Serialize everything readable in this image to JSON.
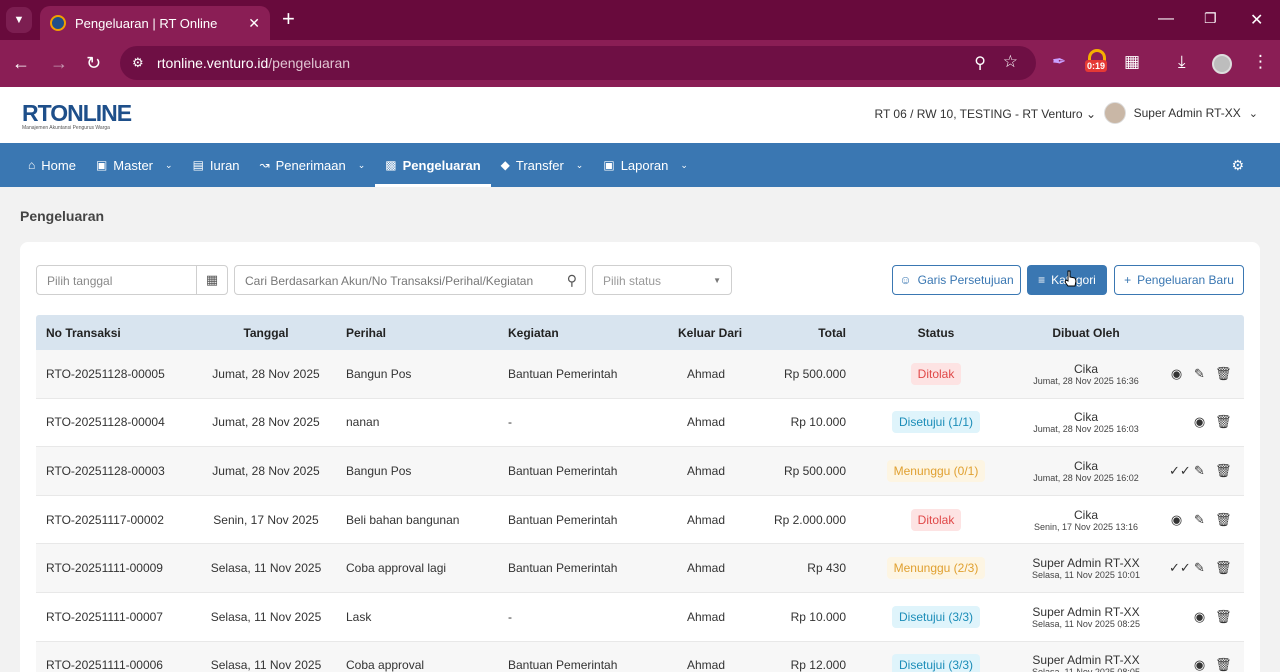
{
  "browser": {
    "tab_title": "Pengeluaran | RT Online",
    "url_host": "rtonline.venturo.id",
    "url_path": "/pengeluaran",
    "recording_badge": "0:19"
  },
  "header": {
    "logo_text": "RTONLINE",
    "logo_tagline": "Manajemen Akuntansi Pengurus Warga",
    "context": "RT 06 / RW 10, TESTING - RT Venturo",
    "user_name": "Super Admin RT-XX"
  },
  "nav": {
    "items": [
      {
        "label": "Home",
        "icon": "home-icon",
        "dropdown": false
      },
      {
        "label": "Master",
        "icon": "file-icon",
        "dropdown": true
      },
      {
        "label": "Iuran",
        "icon": "card-icon",
        "dropdown": false
      },
      {
        "label": "Penerimaan",
        "icon": "chart-icon",
        "dropdown": true
      },
      {
        "label": "Pengeluaran",
        "icon": "image-icon",
        "dropdown": false,
        "active": true
      },
      {
        "label": "Transfer",
        "icon": "tag-icon",
        "dropdown": true
      },
      {
        "label": "Laporan",
        "icon": "document-icon",
        "dropdown": true
      }
    ]
  },
  "page": {
    "title": "Pengeluaran"
  },
  "filters": {
    "date_placeholder": "Pilih tanggal",
    "search_placeholder": "Cari Berdasarkan Akun/No Transaksi/Perihal/Kegiatan",
    "status_placeholder": "Pilih status"
  },
  "buttons": {
    "approval_line": "Garis Persetujuan",
    "category": "Kategori",
    "new_expense": "Pengeluaran Baru"
  },
  "table": {
    "headers": [
      "No Transaksi",
      "Tanggal",
      "Perihal",
      "Kegiatan",
      "Keluar Dari",
      "Total",
      "Status",
      "Dibuat Oleh"
    ],
    "rows": [
      {
        "no": "RTO-20251128-00005",
        "date": "Jumat, 28 Nov 2025",
        "subject": "Bangun Pos",
        "activity": "Bantuan Pemerintah",
        "source": "Ahmad",
        "total": "Rp 500.000",
        "status": "Ditolak",
        "status_type": "rejected",
        "creator": "Cika",
        "created_at": "Jumat, 28 Nov 2025 16:36",
        "first_action": "view"
      },
      {
        "no": "RTO-20251128-00004",
        "date": "Jumat, 28 Nov 2025",
        "subject": "nanan",
        "activity": "-",
        "source": "Ahmad",
        "total": "Rp 10.000",
        "status": "Disetujui (1/1)",
        "status_type": "approved",
        "creator": "Cika",
        "created_at": "Jumat, 28 Nov 2025 16:03",
        "first_action": "view"
      },
      {
        "no": "RTO-20251128-00003",
        "date": "Jumat, 28 Nov 2025",
        "subject": "Bangun Pos",
        "activity": "Bantuan Pemerintah",
        "source": "Ahmad",
        "total": "Rp 500.000",
        "status": "Menunggu (0/1)",
        "status_type": "waiting",
        "creator": "Cika",
        "created_at": "Jumat, 28 Nov 2025 16:02",
        "first_action": "approve"
      },
      {
        "no": "RTO-20251117-00002",
        "date": "Senin, 17 Nov 2025",
        "subject": "Beli bahan bangunan",
        "activity": "Bantuan Pemerintah",
        "source": "Ahmad",
        "total": "Rp 2.000.000",
        "status": "Ditolak",
        "status_type": "rejected",
        "creator": "Cika",
        "created_at": "Senin, 17 Nov 2025 13:16",
        "first_action": "view"
      },
      {
        "no": "RTO-20251111-00009",
        "date": "Selasa, 11 Nov 2025",
        "subject": "Coba approval lagi",
        "activity": "Bantuan Pemerintah",
        "source": "Ahmad",
        "total": "Rp 430",
        "status": "Menunggu (2/3)",
        "status_type": "waiting",
        "creator": "Super Admin RT-XX",
        "created_at": "Selasa, 11 Nov 2025 10:01",
        "first_action": "approve"
      },
      {
        "no": "RTO-20251111-00007",
        "date": "Selasa, 11 Nov 2025",
        "subject": "Lask",
        "activity": "-",
        "source": "Ahmad",
        "total": "Rp 10.000",
        "status": "Disetujui (3/3)",
        "status_type": "approved",
        "creator": "Super Admin RT-XX",
        "created_at": "Selasa, 11 Nov 2025 08:25",
        "first_action": "view"
      },
      {
        "no": "RTO-20251111-00006",
        "date": "Selasa, 11 Nov 2025",
        "subject": "Coba approval",
        "activity": "Bantuan Pemerintah",
        "source": "Ahmad",
        "total": "Rp 12.000",
        "status": "Disetujui (3/3)",
        "status_type": "approved",
        "creator": "Super Admin RT-XX",
        "created_at": "Selasa, 11 Nov 2025 08:05",
        "first_action": "view"
      }
    ]
  }
}
